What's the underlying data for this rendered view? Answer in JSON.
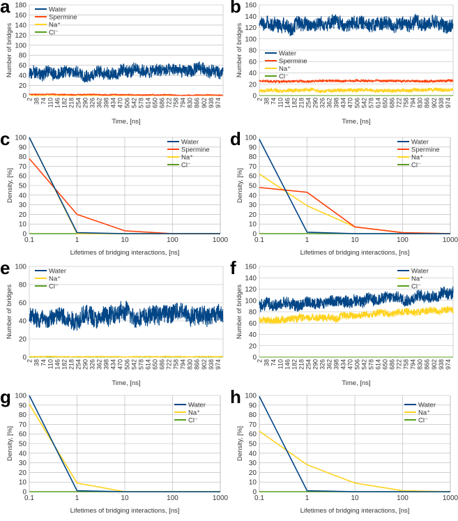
{
  "chart_data": [
    {
      "panel_label": "a",
      "type": "line",
      "xlabel": "Time, [ns]",
      "ylabel": "Number of bridges",
      "ylim": [
        0,
        180
      ],
      "yticks": [
        0,
        20,
        40,
        60,
        80,
        100,
        120,
        140,
        160,
        180
      ],
      "xticks": [
        2,
        38,
        74,
        110,
        146,
        182,
        218,
        254,
        290,
        326,
        362,
        398,
        434,
        470,
        506,
        542,
        578,
        614,
        650,
        686,
        722,
        758,
        794,
        830,
        866,
        902,
        938,
        974
      ],
      "xlim": [
        0,
        1000
      ],
      "legend": "top-left",
      "grid": true,
      "series": [
        {
          "name": "Water",
          "color": "#004586",
          "mean_start": 45,
          "mean_end": 50,
          "spread": 12,
          "min": 25,
          "max": 78
        },
        {
          "name": "Spermine",
          "color": "#ff420e",
          "mean_start": 2.5,
          "mean_end": 0.5,
          "spread": 1.2,
          "min": 0,
          "max": 4
        },
        {
          "name": "Na⁺",
          "color": "#ffd320",
          "mean_start": 0,
          "mean_end": 0,
          "spread": 0,
          "min": 0,
          "max": 0
        },
        {
          "name": "Cl⁻",
          "color": "#579d1c",
          "mean_start": 0,
          "mean_end": 0,
          "spread": 0,
          "min": 0,
          "max": 0
        }
      ]
    },
    {
      "panel_label": "b",
      "type": "line",
      "xlabel": "Time, [ns]",
      "ylabel": "Number of bridges",
      "ylim": [
        0,
        160
      ],
      "yticks": [
        0,
        20,
        40,
        60,
        80,
        100,
        120,
        140,
        160
      ],
      "xticks": [
        2,
        38,
        74,
        110,
        146,
        182,
        218,
        254,
        290,
        326,
        362,
        398,
        434,
        470,
        506,
        542,
        578,
        614,
        650,
        686,
        722,
        758,
        794,
        830,
        866,
        902,
        938,
        974
      ],
      "xlim": [
        0,
        1000
      ],
      "legend": "bottom-left",
      "grid": true,
      "series": [
        {
          "name": "Water",
          "color": "#004586",
          "mean_start": 128,
          "mean_end": 126,
          "spread": 12,
          "min": 100,
          "max": 162
        },
        {
          "name": "Spermine",
          "color": "#ff420e",
          "mean_start": 25,
          "mean_end": 26,
          "spread": 2,
          "min": 20,
          "max": 30
        },
        {
          "name": "Na⁺",
          "color": "#ffd320",
          "mean_start": 9,
          "mean_end": 10,
          "spread": 3,
          "min": 3,
          "max": 16
        },
        {
          "name": "Cl⁻",
          "color": "#579d1c",
          "mean_start": 0,
          "mean_end": 0,
          "spread": 0,
          "min": 0,
          "max": 0
        }
      ]
    },
    {
      "panel_label": "c",
      "type": "line",
      "xscale": "log",
      "xlabel": "Lifetimes of bridging interactions, [ns]",
      "ylabel": "Density, [%]",
      "ylim": [
        0,
        100
      ],
      "yticks": [
        0,
        10,
        20,
        30,
        40,
        50,
        60,
        70,
        80,
        90,
        100
      ],
      "x": [
        0.1,
        1,
        10,
        100,
        1000
      ],
      "xtick_labels": [
        "0.1",
        "1",
        "10",
        "100",
        "1000"
      ],
      "legend": "top-right",
      "grid": true,
      "series": [
        {
          "name": "Water",
          "color": "#004586",
          "values": [
            100,
            1,
            0,
            0,
            0
          ]
        },
        {
          "name": "Spermine",
          "color": "#ff420e",
          "values": [
            78,
            20,
            3,
            0,
            0
          ]
        },
        {
          "name": "Na⁺",
          "color": "#ffd320",
          "values": [
            100,
            0,
            0,
            0,
            0
          ]
        },
        {
          "name": "Cl⁻",
          "color": "#579d1c",
          "values": [
            0,
            0,
            0,
            0,
            0
          ]
        }
      ]
    },
    {
      "panel_label": "d",
      "type": "line",
      "xscale": "log",
      "xlabel": "Lifetimes of bridging interactions, [ns]",
      "ylabel": "Density, [%]",
      "ylim": [
        0,
        100
      ],
      "yticks": [
        0,
        10,
        20,
        30,
        40,
        50,
        60,
        70,
        80,
        90,
        100
      ],
      "x": [
        0.1,
        1,
        10,
        100,
        1000
      ],
      "xtick_labels": [
        "0.1",
        "1",
        "10",
        "100",
        "1000"
      ],
      "legend": "top-right",
      "grid": true,
      "series": [
        {
          "name": "Water",
          "color": "#004586",
          "values": [
            98,
            1.5,
            0,
            0,
            0
          ]
        },
        {
          "name": "Spermine",
          "color": "#ff420e",
          "values": [
            48,
            43,
            7,
            1,
            0
          ]
        },
        {
          "name": "Na⁺",
          "color": "#ffd320",
          "values": [
            62,
            29,
            7,
            1,
            0
          ]
        },
        {
          "name": "Cl⁻",
          "color": "#579d1c",
          "values": [
            0,
            0,
            0,
            0,
            0
          ]
        }
      ]
    },
    {
      "panel_label": "e",
      "type": "line",
      "xlabel": "Time, [ns]",
      "ylabel": "Number of bridges",
      "ylim": [
        0,
        100
      ],
      "yticks": [
        0,
        20,
        40,
        60,
        80,
        100
      ],
      "xticks": [
        2,
        38,
        74,
        110,
        146,
        182,
        218,
        254,
        290,
        326,
        362,
        398,
        434,
        470,
        506,
        542,
        578,
        614,
        650,
        686,
        722,
        758,
        794,
        830,
        866,
        902,
        938,
        974
      ],
      "xlim": [
        0,
        1000
      ],
      "legend": "top-left",
      "grid": true,
      "series": [
        {
          "name": "Water",
          "color": "#004586",
          "mean_start": 44,
          "mean_end": 50,
          "spread": 10,
          "min": 25,
          "max": 75
        },
        {
          "name": "Na⁺",
          "color": "#ffd320",
          "mean_start": 0.5,
          "mean_end": 0.5,
          "spread": 0.5,
          "min": 0,
          "max": 2
        },
        {
          "name": "Cl⁻",
          "color": "#579d1c",
          "mean_start": 0,
          "mean_end": 0,
          "spread": 0,
          "min": 0,
          "max": 0
        }
      ]
    },
    {
      "panel_label": "f",
      "type": "line",
      "xlabel": "Time, [ns]",
      "ylabel": "Number of bridges",
      "ylim": [
        0,
        160
      ],
      "yticks": [
        0,
        20,
        40,
        60,
        80,
        100,
        120,
        140,
        160
      ],
      "xticks": [
        2,
        38,
        74,
        110,
        146,
        182,
        218,
        254,
        290,
        326,
        362,
        398,
        434,
        470,
        506,
        542,
        578,
        614,
        650,
        686,
        722,
        758,
        794,
        830,
        866,
        902,
        938,
        974
      ],
      "xlim": [
        0,
        1000
      ],
      "legend": "top-right",
      "grid": true,
      "series": [
        {
          "name": "Water",
          "color": "#004586",
          "mean_start": 90,
          "mean_end": 112,
          "spread": 10,
          "min": 65,
          "max": 135
        },
        {
          "name": "Na⁺",
          "color": "#ffd320",
          "mean_start": 65,
          "mean_end": 84,
          "spread": 6,
          "min": 50,
          "max": 95
        },
        {
          "name": "Cl⁻",
          "color": "#579d1c",
          "mean_start": 0,
          "mean_end": 0,
          "spread": 0,
          "min": 0,
          "max": 0
        }
      ]
    },
    {
      "panel_label": "g",
      "type": "line",
      "xscale": "log",
      "xlabel": "Lifetimes of bridging interactions, [ns]",
      "ylabel": "Density, [%]",
      "ylim": [
        0,
        100
      ],
      "yticks": [
        0,
        10,
        20,
        30,
        40,
        50,
        60,
        70,
        80,
        90,
        100
      ],
      "x": [
        0.1,
        1,
        10,
        100,
        1000
      ],
      "xtick_labels": [
        "0.1",
        "1",
        "10",
        "100",
        "1000"
      ],
      "legend": "top-right",
      "grid": true,
      "series": [
        {
          "name": "Water",
          "color": "#004586",
          "values": [
            100,
            1,
            0,
            0,
            0
          ]
        },
        {
          "name": "Na⁺",
          "color": "#ffd320",
          "values": [
            91,
            9,
            0,
            0,
            0
          ]
        },
        {
          "name": "Cl⁻",
          "color": "#579d1c",
          "values": [
            0,
            0,
            0,
            0,
            0
          ]
        }
      ]
    },
    {
      "panel_label": "h",
      "type": "line",
      "xscale": "log",
      "xlabel": "Lifetimes of bridging interactions, [ns]",
      "ylabel": "Density, [%]",
      "ylim": [
        0,
        100
      ],
      "yticks": [
        0,
        10,
        20,
        30,
        40,
        50,
        60,
        70,
        80,
        90,
        100
      ],
      "x": [
        0.1,
        1,
        10,
        100,
        1000
      ],
      "xtick_labels": [
        "0.1",
        "1",
        "10",
        "100",
        "1000"
      ],
      "legend": "top-right",
      "grid": true,
      "series": [
        {
          "name": "Water",
          "color": "#004586",
          "values": [
            99,
            1,
            0,
            0,
            0
          ]
        },
        {
          "name": "Na⁺",
          "color": "#ffd320",
          "values": [
            63,
            28,
            9,
            1,
            0
          ]
        },
        {
          "name": "Cl⁻",
          "color": "#579d1c",
          "values": [
            0,
            0,
            0,
            0,
            0
          ]
        }
      ]
    }
  ]
}
